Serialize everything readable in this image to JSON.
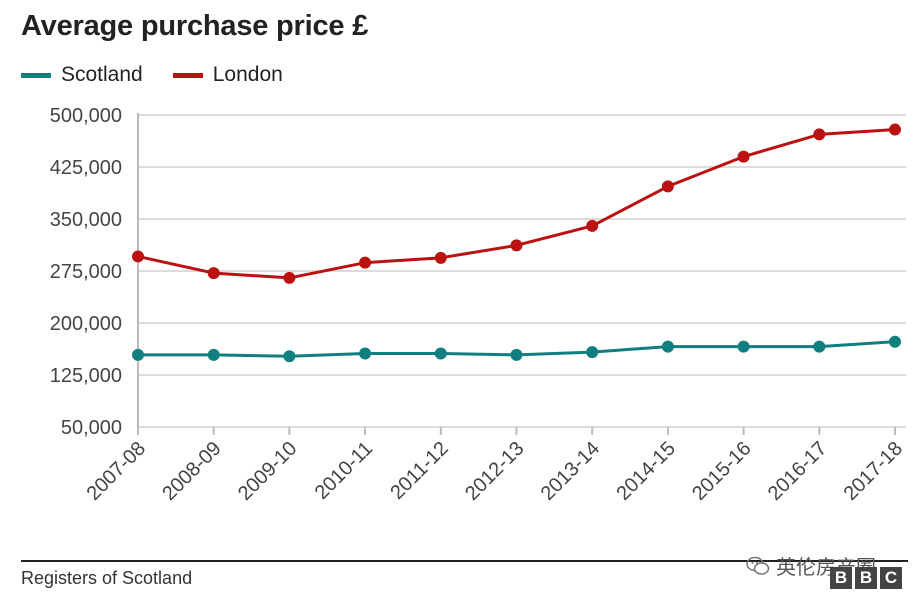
{
  "chart_data": {
    "type": "line",
    "title": "Average purchase price £",
    "xlabel": "",
    "ylabel": "",
    "categories": [
      "2007-08",
      "2008-09",
      "2009-10",
      "2010-11",
      "2011-12",
      "2012-13",
      "2013-14",
      "2014-15",
      "2015-16",
      "2016-17",
      "2017-18"
    ],
    "y_ticks": [
      50000,
      125000,
      200000,
      275000,
      350000,
      425000,
      500000
    ],
    "y_tick_labels": [
      "50,000",
      "125,000",
      "200,000",
      "275,000",
      "350,000",
      "425,000",
      "500,000"
    ],
    "ylim": [
      50000,
      500000
    ],
    "grid": true,
    "legend_position": "top-left",
    "series": [
      {
        "name": "Scotland",
        "color": "#0f7f7f",
        "values": [
          154000,
          154000,
          152000,
          156000,
          156000,
          154000,
          158000,
          166000,
          166000,
          166000,
          173000
        ]
      },
      {
        "name": "London",
        "color": "#bb1111",
        "values": [
          296000,
          272000,
          265000,
          287000,
          294000,
          312000,
          340000,
          397000,
          440000,
          472000,
          479000
        ]
      }
    ]
  },
  "footer": {
    "source": "Registers of Scotland",
    "watermark": "英伦房产圈",
    "logo_letters": [
      "B",
      "B",
      "C"
    ]
  }
}
